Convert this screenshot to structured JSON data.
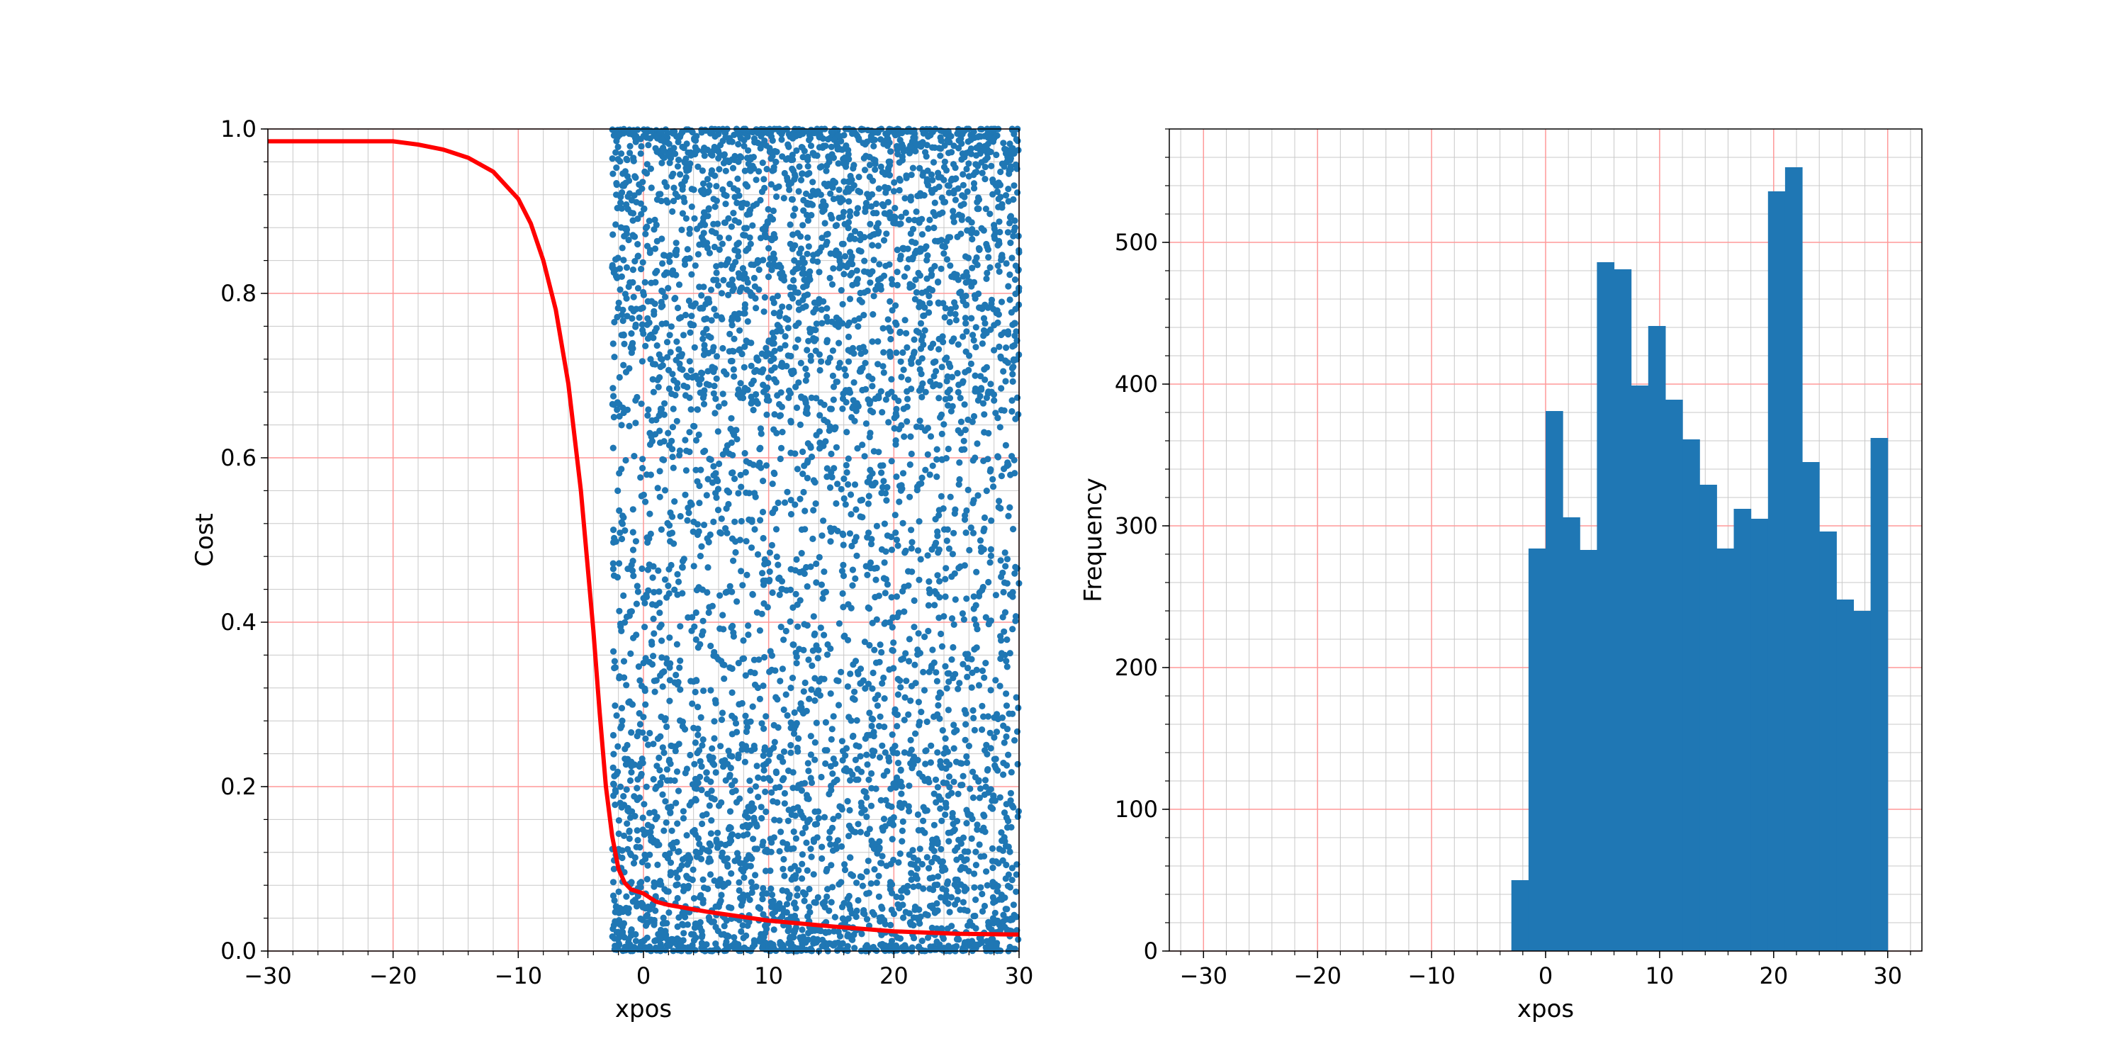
{
  "chart_data": [
    {
      "type": "scatter",
      "xlabel": "xpos",
      "ylabel": "Cost",
      "xlim": [
        -30,
        30
      ],
      "ylim": [
        0,
        1
      ],
      "x_ticks": [
        -30,
        -20,
        -10,
        0,
        10,
        20,
        30
      ],
      "x_tick_labels": [
        "−30",
        "−20",
        "−10",
        "0",
        "10",
        "20",
        "30"
      ],
      "y_ticks": [
        0,
        0.2,
        0.4,
        0.6,
        0.8,
        1.0
      ],
      "y_tick_labels": [
        "0.0",
        "0.2",
        "0.4",
        "0.6",
        "0.8",
        "1.0"
      ],
      "grid": {
        "major": true,
        "minor": true,
        "major_color": "#ff9999",
        "minor_color": "#c8c8c8"
      },
      "scatter": {
        "color": "#1f77b4",
        "x_range": [
          -2.5,
          30
        ],
        "y_range": [
          0,
          1
        ],
        "point_count": 5000,
        "note_shape": "dense near y=1 and y=0, sparser in middle"
      },
      "curve": {
        "color": "#ff0000",
        "points": [
          [
            -30,
            0.985
          ],
          [
            -20,
            0.985
          ],
          [
            -18,
            0.981
          ],
          [
            -16,
            0.975
          ],
          [
            -14,
            0.965
          ],
          [
            -12,
            0.948
          ],
          [
            -10,
            0.915
          ],
          [
            -9,
            0.885
          ],
          [
            -8,
            0.84
          ],
          [
            -7,
            0.78
          ],
          [
            -6,
            0.69
          ],
          [
            -5,
            0.56
          ],
          [
            -4,
            0.39
          ],
          [
            -3.5,
            0.29
          ],
          [
            -3,
            0.2
          ],
          [
            -2.5,
            0.14
          ],
          [
            -2,
            0.1
          ],
          [
            -1.5,
            0.083
          ],
          [
            -1,
            0.075
          ],
          [
            0,
            0.07
          ],
          [
            1,
            0.06
          ],
          [
            2,
            0.056
          ],
          [
            5,
            0.048
          ],
          [
            10,
            0.037
          ],
          [
            15,
            0.03
          ],
          [
            20,
            0.024
          ],
          [
            25,
            0.021
          ],
          [
            30,
            0.02
          ]
        ]
      }
    },
    {
      "type": "bar",
      "xlabel": "xpos",
      "ylabel": "Frequency",
      "xlim": [
        -33,
        33
      ],
      "ylim": [
        0,
        580
      ],
      "x_ticks": [
        -30,
        -20,
        -10,
        0,
        10,
        20,
        30
      ],
      "x_tick_labels": [
        "−30",
        "−20",
        "−10",
        "0",
        "10",
        "20",
        "30"
      ],
      "y_ticks": [
        0,
        100,
        200,
        300,
        400,
        500
      ],
      "y_tick_labels": [
        "0",
        "100",
        "200",
        "300",
        "400",
        "500"
      ],
      "grid": {
        "major": true,
        "minor": true,
        "major_color": "#ff9999",
        "minor_color": "#c8c8c8"
      },
      "bar_color": "#1f77b4",
      "bin_start": -3,
      "bin_width": 1.5,
      "values": [
        50,
        284,
        381,
        306,
        283,
        486,
        481,
        399,
        441,
        389,
        361,
        329,
        284,
        312,
        305,
        536,
        553,
        345,
        296,
        248,
        240,
        362
      ]
    }
  ]
}
